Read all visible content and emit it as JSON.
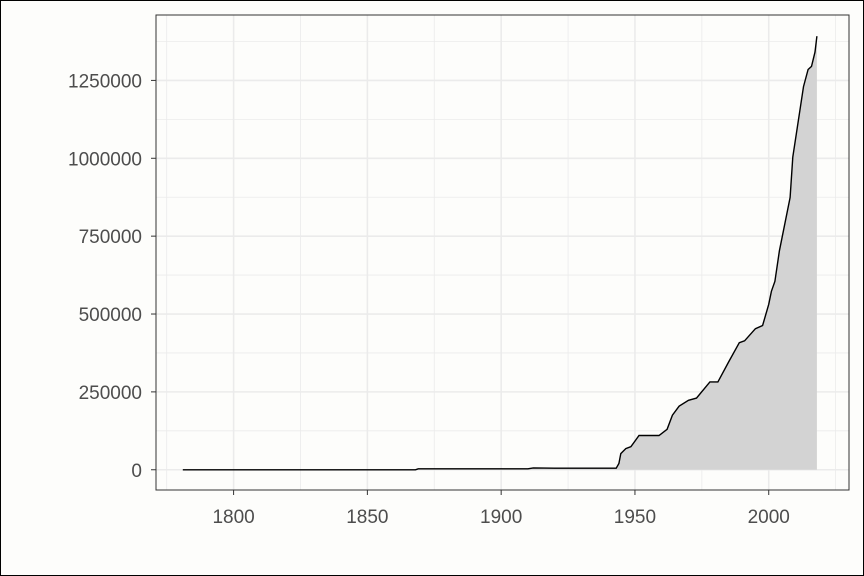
{
  "chart_data": {
    "type": "area",
    "title": "",
    "xlabel": "",
    "ylabel": "",
    "xlim": [
      1771,
      2030
    ],
    "ylim": [
      -65000,
      1460000
    ],
    "x_ticks": [
      1800,
      1850,
      1900,
      1950,
      2000
    ],
    "x_tick_labels": [
      "1800",
      "1850",
      "1900",
      "1950",
      "2000"
    ],
    "y_ticks": [
      0,
      250000,
      500000,
      750000,
      1000000,
      1250000
    ],
    "y_tick_labels": [
      "0",
      "250000",
      "500000",
      "750000",
      "1000000",
      "1250000"
    ],
    "grid": true,
    "legend": "none",
    "colors": {
      "fill": "#d3d3d3",
      "line": "#000000",
      "grid": "#ebebeb",
      "panel_border": "#333333"
    },
    "series": [
      {
        "x": [
          1781,
          1868,
          1869,
          1910,
          1912,
          1920,
          1943,
          1944,
          1944.7,
          1946.6,
          1948.5,
          1951.5,
          1959,
          1962,
          1964,
          1966.5,
          1970,
          1973,
          1978,
          1981,
          1985,
          1989,
          1991,
          1995,
          1997.7,
          2000,
          2001,
          2002.3,
          2004,
          2008,
          2009,
          2011.7,
          2013,
          2014.7,
          2016,
          2017.3,
          2018
        ],
        "y": [
          0,
          0,
          3000,
          3000,
          6000,
          5000,
          5000,
          20000,
          52000,
          68000,
          74000,
          110000,
          110000,
          130000,
          175000,
          204000,
          223000,
          230000,
          282000,
          282000,
          346000,
          408000,
          414000,
          453000,
          463000,
          531000,
          573000,
          605000,
          703000,
          874000,
          1004000,
          1156000,
          1230000,
          1285000,
          1295000,
          1341000,
          1392000
        ]
      }
    ]
  }
}
